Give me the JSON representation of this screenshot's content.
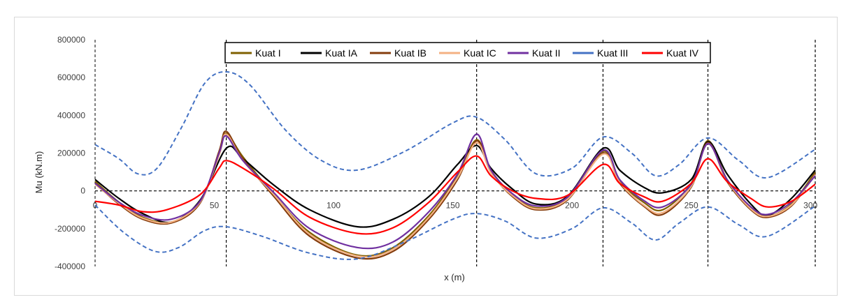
{
  "chart_data": {
    "type": "line",
    "title": "",
    "xlabel": "x (m)",
    "ylabel": "Mu (kN.m)",
    "xlim": [
      0,
      302
    ],
    "ylim": [
      -400000,
      800000
    ],
    "x_ticks": [
      0,
      50,
      100,
      150,
      200,
      250,
      300
    ],
    "x_tick_labels": [
      "0",
      "50",
      "100",
      "150",
      "200",
      "250",
      "300"
    ],
    "y_ticks": [
      -400000,
      -200000,
      0,
      200000,
      400000,
      600000,
      800000
    ],
    "y_tick_labels": [
      "-400000",
      "-200000",
      "0",
      "200000",
      "400000",
      "600000",
      "800000"
    ],
    "support_lines_x": [
      55,
      160,
      213,
      257,
      302
    ],
    "grid": false,
    "legend_position": "top",
    "series": [
      {
        "name": "Kuat I",
        "color": "#7f6000",
        "dashed": false,
        "points": [
          [
            0,
            50000
          ],
          [
            10,
            -60000
          ],
          [
            20,
            -140000
          ],
          [
            32,
            -165000
          ],
          [
            44,
            -60000
          ],
          [
            52,
            200000
          ],
          [
            55,
            305000
          ],
          [
            62,
            180000
          ],
          [
            75,
            -20000
          ],
          [
            90,
            -220000
          ],
          [
            110,
            -340000
          ],
          [
            125,
            -300000
          ],
          [
            140,
            -130000
          ],
          [
            152,
            80000
          ],
          [
            160,
            270000
          ],
          [
            166,
            110000
          ],
          [
            175,
            -20000
          ],
          [
            185,
            -90000
          ],
          [
            198,
            -40000
          ],
          [
            213,
            210000
          ],
          [
            220,
            50000
          ],
          [
            230,
            -60000
          ],
          [
            238,
            -100000
          ],
          [
            250,
            40000
          ],
          [
            257,
            265000
          ],
          [
            265,
            60000
          ],
          [
            275,
            -90000
          ],
          [
            282,
            -135000
          ],
          [
            292,
            -70000
          ],
          [
            302,
            100000
          ]
        ]
      },
      {
        "name": "Kuat IA",
        "color": "#000000",
        "dashed": false,
        "points": [
          [
            0,
            60000
          ],
          [
            10,
            -40000
          ],
          [
            20,
            -120000
          ],
          [
            32,
            -165000
          ],
          [
            44,
            -50000
          ],
          [
            55,
            225000
          ],
          [
            62,
            170000
          ],
          [
            75,
            30000
          ],
          [
            90,
            -100000
          ],
          [
            110,
            -190000
          ],
          [
            125,
            -150000
          ],
          [
            140,
            -30000
          ],
          [
            152,
            140000
          ],
          [
            160,
            240000
          ],
          [
            166,
            120000
          ],
          [
            175,
            10000
          ],
          [
            185,
            -70000
          ],
          [
            198,
            -30000
          ],
          [
            213,
            225000
          ],
          [
            220,
            110000
          ],
          [
            230,
            20000
          ],
          [
            238,
            -10000
          ],
          [
            250,
            60000
          ],
          [
            257,
            260000
          ],
          [
            265,
            90000
          ],
          [
            275,
            -70000
          ],
          [
            282,
            -130000
          ],
          [
            292,
            -40000
          ],
          [
            302,
            110000
          ]
        ]
      },
      {
        "name": "Kuat IB",
        "color": "#843c0c",
        "dashed": false,
        "points": [
          [
            0,
            40000
          ],
          [
            10,
            -70000
          ],
          [
            20,
            -150000
          ],
          [
            32,
            -170000
          ],
          [
            44,
            -65000
          ],
          [
            52,
            210000
          ],
          [
            55,
            315000
          ],
          [
            62,
            170000
          ],
          [
            75,
            -30000
          ],
          [
            90,
            -240000
          ],
          [
            110,
            -355000
          ],
          [
            125,
            -320000
          ],
          [
            140,
            -150000
          ],
          [
            152,
            60000
          ],
          [
            160,
            265000
          ],
          [
            166,
            100000
          ],
          [
            175,
            -30000
          ],
          [
            185,
            -100000
          ],
          [
            198,
            -50000
          ],
          [
            213,
            200000
          ],
          [
            220,
            40000
          ],
          [
            230,
            -80000
          ],
          [
            238,
            -125000
          ],
          [
            250,
            20000
          ],
          [
            257,
            255000
          ],
          [
            265,
            50000
          ],
          [
            275,
            -100000
          ],
          [
            282,
            -140000
          ],
          [
            292,
            -80000
          ],
          [
            302,
            90000
          ]
        ]
      },
      {
        "name": "Kuat IC",
        "color": "#f4b183",
        "dashed": false,
        "points": [
          [
            0,
            35000
          ],
          [
            10,
            -65000
          ],
          [
            20,
            -145000
          ],
          [
            32,
            -165000
          ],
          [
            44,
            -60000
          ],
          [
            52,
            190000
          ],
          [
            55,
            300000
          ],
          [
            62,
            160000
          ],
          [
            75,
            -20000
          ],
          [
            90,
            -230000
          ],
          [
            110,
            -345000
          ],
          [
            125,
            -310000
          ],
          [
            140,
            -140000
          ],
          [
            152,
            70000
          ],
          [
            160,
            255000
          ],
          [
            166,
            95000
          ],
          [
            175,
            -25000
          ],
          [
            185,
            -95000
          ],
          [
            198,
            -45000
          ],
          [
            213,
            195000
          ],
          [
            220,
            45000
          ],
          [
            230,
            -75000
          ],
          [
            238,
            -115000
          ],
          [
            250,
            25000
          ],
          [
            257,
            250000
          ],
          [
            265,
            55000
          ],
          [
            275,
            -95000
          ],
          [
            282,
            -135000
          ],
          [
            292,
            -75000
          ],
          [
            302,
            85000
          ]
        ]
      },
      {
        "name": "Kuat II",
        "color": "#7030a0",
        "dashed": false,
        "points": [
          [
            0,
            40000
          ],
          [
            10,
            -60000
          ],
          [
            20,
            -130000
          ],
          [
            32,
            -150000
          ],
          [
            44,
            -55000
          ],
          [
            52,
            200000
          ],
          [
            55,
            290000
          ],
          [
            62,
            160000
          ],
          [
            75,
            -10000
          ],
          [
            90,
            -200000
          ],
          [
            110,
            -300000
          ],
          [
            125,
            -270000
          ],
          [
            140,
            -110000
          ],
          [
            152,
            90000
          ],
          [
            160,
            300000
          ],
          [
            166,
            110000
          ],
          [
            175,
            -15000
          ],
          [
            185,
            -80000
          ],
          [
            198,
            -35000
          ],
          [
            213,
            215000
          ],
          [
            220,
            60000
          ],
          [
            230,
            -50000
          ],
          [
            238,
            -85000
          ],
          [
            250,
            35000
          ],
          [
            257,
            250000
          ],
          [
            265,
            60000
          ],
          [
            275,
            -85000
          ],
          [
            282,
            -125000
          ],
          [
            292,
            -60000
          ],
          [
            302,
            80000
          ]
        ]
      },
      {
        "name": "Kuat III",
        "color": "#4472c4",
        "dashed": true,
        "points": [
          [
            0,
            245000
          ],
          [
            10,
            170000
          ],
          [
            18,
            90000
          ],
          [
            26,
            120000
          ],
          [
            36,
            330000
          ],
          [
            46,
            570000
          ],
          [
            55,
            630000
          ],
          [
            65,
            560000
          ],
          [
            80,
            320000
          ],
          [
            95,
            160000
          ],
          [
            110,
            110000
          ],
          [
            130,
            210000
          ],
          [
            150,
            360000
          ],
          [
            160,
            390000
          ],
          [
            172,
            270000
          ],
          [
            185,
            90000
          ],
          [
            200,
            120000
          ],
          [
            213,
            285000
          ],
          [
            225,
            200000
          ],
          [
            235,
            80000
          ],
          [
            245,
            140000
          ],
          [
            257,
            280000
          ],
          [
            270,
            160000
          ],
          [
            282,
            70000
          ],
          [
            302,
            220000
          ]
        ]
      },
      {
        "name": "Kuat III (lower)",
        "legend": false,
        "color": "#4472c4",
        "dashed": true,
        "points": [
          [
            0,
            -75000
          ],
          [
            12,
            -220000
          ],
          [
            25,
            -320000
          ],
          [
            35,
            -300000
          ],
          [
            46,
            -210000
          ],
          [
            55,
            -190000
          ],
          [
            70,
            -240000
          ],
          [
            90,
            -330000
          ],
          [
            110,
            -360000
          ],
          [
            130,
            -270000
          ],
          [
            150,
            -150000
          ],
          [
            160,
            -120000
          ],
          [
            172,
            -160000
          ],
          [
            185,
            -250000
          ],
          [
            200,
            -200000
          ],
          [
            213,
            -90000
          ],
          [
            225,
            -170000
          ],
          [
            235,
            -260000
          ],
          [
            245,
            -170000
          ],
          [
            257,
            -85000
          ],
          [
            270,
            -180000
          ],
          [
            282,
            -240000
          ],
          [
            302,
            -80000
          ]
        ]
      },
      {
        "name": "Kuat IV",
        "color": "#ff0000",
        "dashed": false,
        "points": [
          [
            0,
            -55000
          ],
          [
            10,
            -75000
          ],
          [
            20,
            -110000
          ],
          [
            30,
            -100000
          ],
          [
            44,
            -20000
          ],
          [
            52,
            120000
          ],
          [
            55,
            160000
          ],
          [
            62,
            120000
          ],
          [
            75,
            10000
          ],
          [
            90,
            -140000
          ],
          [
            110,
            -225000
          ],
          [
            125,
            -195000
          ],
          [
            140,
            -60000
          ],
          [
            152,
            100000
          ],
          [
            160,
            185000
          ],
          [
            166,
            80000
          ],
          [
            175,
            0
          ],
          [
            185,
            -40000
          ],
          [
            198,
            -25000
          ],
          [
            213,
            140000
          ],
          [
            220,
            40000
          ],
          [
            230,
            -30000
          ],
          [
            238,
            -55000
          ],
          [
            250,
            40000
          ],
          [
            257,
            170000
          ],
          [
            265,
            50000
          ],
          [
            275,
            -40000
          ],
          [
            282,
            -85000
          ],
          [
            292,
            -55000
          ],
          [
            302,
            35000
          ]
        ]
      }
    ]
  }
}
